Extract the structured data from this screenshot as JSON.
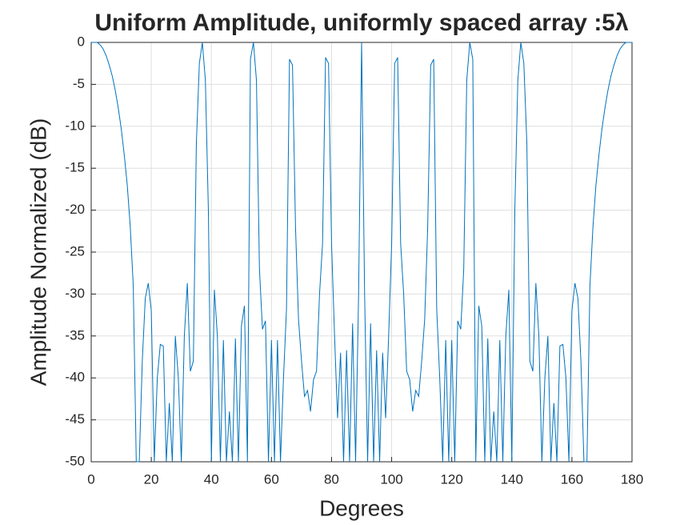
{
  "chart_data": {
    "type": "line",
    "title": "Uniform Amplitude, uniformly spaced array :5λ",
    "x_label": "Degrees",
    "y_label": "Amplitude Normalized (dB)",
    "xlim": [
      0,
      180
    ],
    "ylim": [
      -50,
      0
    ],
    "xticks": [
      0,
      20,
      40,
      60,
      80,
      100,
      120,
      140,
      160,
      180
    ],
    "yticks": [
      0,
      -5,
      -10,
      -15,
      -20,
      -25,
      -30,
      -35,
      -40,
      -45,
      -50
    ],
    "grid": true,
    "color": "#0072bd",
    "x": [
      0,
      1,
      2,
      3,
      4,
      5,
      6,
      7,
      8,
      9,
      10,
      11,
      12,
      13,
      14,
      15,
      16,
      17,
      18,
      19,
      20,
      21,
      22,
      23,
      24,
      25,
      26,
      27,
      28,
      29,
      30,
      31,
      32,
      33,
      34,
      35,
      36,
      37,
      38,
      39,
      40,
      41,
      42,
      43,
      44,
      45,
      46,
      47,
      48,
      49,
      50,
      51,
      52,
      53,
      54,
      55,
      56,
      57,
      58,
      59,
      60,
      61,
      62,
      63,
      64,
      65,
      66,
      67,
      68,
      69,
      70,
      71,
      72,
      73,
      74,
      75,
      76,
      77,
      78,
      79,
      80,
      81,
      82,
      83,
      84,
      85,
      86,
      87,
      88,
      89,
      90,
      91,
      92,
      93,
      94,
      95,
      96,
      97,
      98,
      99,
      100,
      101,
      102,
      103,
      104,
      105,
      106,
      107,
      108,
      109,
      110,
      111,
      112,
      113,
      114,
      115,
      116,
      117,
      118,
      119,
      120,
      121,
      122,
      123,
      124,
      125,
      126,
      127,
      128,
      129,
      130,
      131,
      132,
      133,
      134,
      135,
      136,
      137,
      138,
      139,
      140,
      141,
      142,
      143,
      144,
      145,
      146,
      147,
      148,
      149,
      150,
      151,
      152,
      153,
      154,
      155,
      156,
      157,
      158,
      159,
      160,
      161,
      162,
      163,
      164,
      165,
      166,
      167,
      168,
      169,
      170,
      171,
      172,
      173,
      174,
      175,
      176,
      177,
      178,
      179,
      180
    ],
    "values": [
      0,
      0,
      0,
      -0.3,
      -0.8,
      -1.6,
      -2.7,
      -4,
      -5.7,
      -7.8,
      -10.3,
      -13.4,
      -17,
      -22,
      -29,
      -50,
      -50,
      -38,
      -30.5,
      -28.7,
      -32,
      -50,
      -40,
      -36,
      -36.2,
      -50,
      -43,
      -50,
      -35,
      -40,
      -50,
      -35,
      -28.7,
      -39.2,
      -38,
      -12,
      -2.5,
      0,
      -4.5,
      -20,
      -50,
      -29.5,
      -35,
      -50,
      -35.5,
      -50,
      -44,
      -50,
      -35.3,
      -50,
      -33.8,
      -31.4,
      -50,
      -2,
      0,
      -4.5,
      -27,
      -34.2,
      -33.2,
      -50,
      -35.5,
      -50,
      -35.5,
      -50,
      -40,
      -31.8,
      -2,
      -2.7,
      -22,
      -33,
      -38,
      -42.2,
      -41.5,
      -44,
      -40.2,
      -39.2,
      -30,
      -24,
      -1.8,
      -2.5,
      -24,
      -35,
      -44.8,
      -37,
      -50,
      -36.7,
      -50,
      -33.5,
      -50,
      -30,
      0,
      -30,
      -50,
      -33.5,
      -50,
      -36.7,
      -50,
      -37,
      -44.8,
      -35,
      -24,
      -2.5,
      -1.8,
      -24,
      -30,
      -39.2,
      -40.2,
      -44,
      -41.5,
      -42.2,
      -38,
      -33,
      -22,
      -2.7,
      -2,
      -31.8,
      -40,
      -50,
      -35.5,
      -50,
      -35.5,
      -50,
      -33.2,
      -34.2,
      -27,
      -4.5,
      0,
      -2,
      -50,
      -31.4,
      -33.8,
      -50,
      -35.3,
      -50,
      -44,
      -50,
      -35.5,
      -50,
      -35,
      -29.5,
      -50,
      -20,
      -4.5,
      0,
      -2.5,
      -12,
      -38,
      -39.2,
      -28.7,
      -35,
      -50,
      -40,
      -35,
      -50,
      -43,
      -50,
      -36.2,
      -36,
      -40,
      -50,
      -32,
      -28.7,
      -30.5,
      -38,
      -50,
      -50,
      -29,
      -22,
      -17,
      -13.4,
      -10.3,
      -7.8,
      -5.7,
      -4,
      -2.7,
      -1.6,
      -0.8,
      -0.3,
      0,
      0,
      0
    ]
  }
}
